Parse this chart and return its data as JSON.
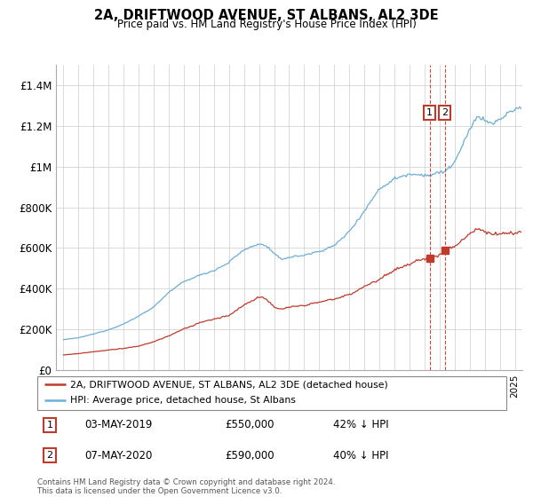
{
  "title": "2A, DRIFTWOOD AVENUE, ST ALBANS, AL2 3DE",
  "subtitle": "Price paid vs. HM Land Registry's House Price Index (HPI)",
  "ylabel_ticks": [
    "£0",
    "£200K",
    "£400K",
    "£600K",
    "£800K",
    "£1M",
    "£1.2M",
    "£1.4M"
  ],
  "ylim": [
    0,
    1500000
  ],
  "yticks": [
    0,
    200000,
    400000,
    600000,
    800000,
    1000000,
    1200000,
    1400000
  ],
  "legend_line1": "2A, DRIFTWOOD AVENUE, ST ALBANS, AL2 3DE (detached house)",
  "legend_line2": "HPI: Average price, detached house, St Albans",
  "transaction1_date": "03-MAY-2019",
  "transaction1_price": "£550,000",
  "transaction1_hpi": "42% ↓ HPI",
  "transaction2_date": "07-MAY-2020",
  "transaction2_price": "£590,000",
  "transaction2_hpi": "40% ↓ HPI",
  "footer": "Contains HM Land Registry data © Crown copyright and database right 2024.\nThis data is licensed under the Open Government Licence v3.0.",
  "hpi_color": "#6baed6",
  "price_color": "#c0392b",
  "vline_color": "#c0392b",
  "background_color": "#ffffff",
  "grid_color": "#cccccc",
  "t1_year": 2019.339,
  "t2_year": 2020.351
}
